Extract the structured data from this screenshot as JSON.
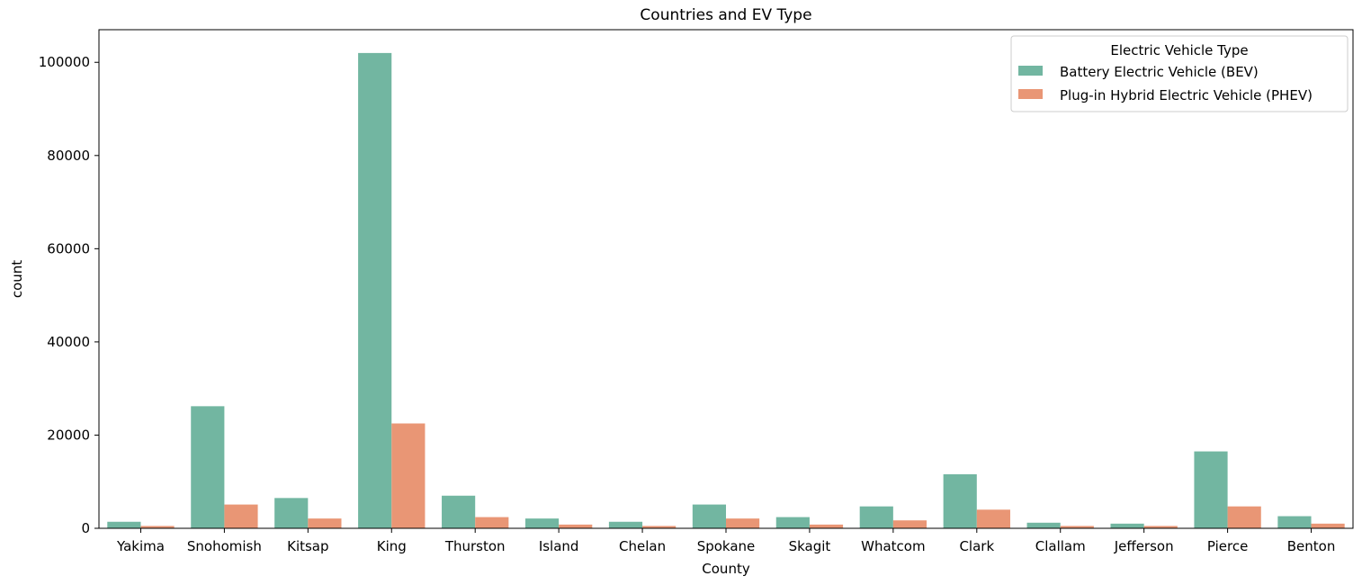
{
  "chart_data": {
    "type": "bar",
    "title": "Countries and EV Type",
    "xlabel": "County",
    "ylabel": "count",
    "categories": [
      "Yakima",
      "Snohomish",
      "Kitsap",
      "King",
      "Thurston",
      "Island",
      "Chelan",
      "Spokane",
      "Skagit",
      "Whatcom",
      "Clark",
      "Clallam",
      "Jefferson",
      "Pierce",
      "Benton"
    ],
    "series": [
      {
        "name": "Battery Electric Vehicle (BEV)",
        "color": "#72b6a1",
        "values": [
          1400,
          26200,
          6500,
          102000,
          7000,
          2100,
          1400,
          5100,
          2400,
          4700,
          11600,
          1200,
          1000,
          16500,
          2600
        ]
      },
      {
        "name": "Plug-in Hybrid Electric Vehicle (PHEV)",
        "color": "#e99675",
        "values": [
          500,
          5100,
          2100,
          22500,
          2400,
          800,
          500,
          2100,
          800,
          1700,
          4000,
          500,
          500,
          4700,
          1000
        ]
      }
    ],
    "ylim": [
      0,
      107000
    ],
    "yticks": [
      "0",
      "20000",
      "40000",
      "60000",
      "80000",
      "100000"
    ],
    "grid": false,
    "legend": {
      "title": "Electric Vehicle Type",
      "placement": "top-right"
    }
  }
}
